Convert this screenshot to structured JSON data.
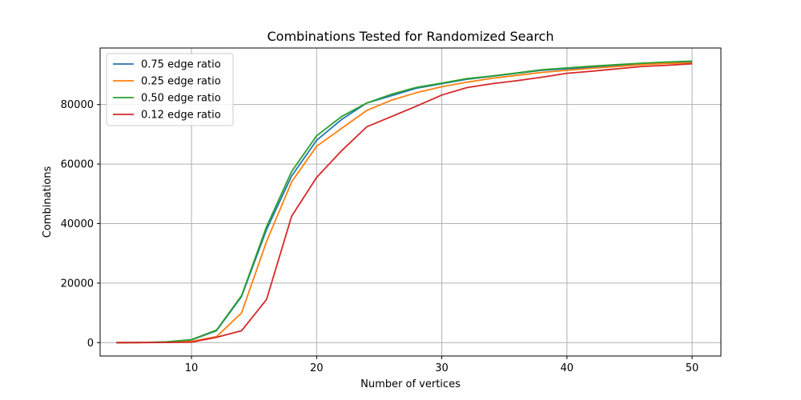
{
  "chart_data": {
    "type": "line",
    "title": "Combinations Tested for Randomized Search",
    "xlabel": "Number of vertices",
    "ylabel": "Combinations",
    "xlim": [
      2.7,
      52.3
    ],
    "ylim": [
      -4500,
      99000
    ],
    "xticks": [
      10,
      20,
      30,
      40,
      50
    ],
    "yticks": [
      0,
      20000,
      40000,
      60000,
      80000
    ],
    "grid": true,
    "legend_position": "top-left",
    "x": [
      4,
      6,
      8,
      10,
      12,
      14,
      16,
      18,
      20,
      22,
      24,
      26,
      28,
      30,
      32,
      34,
      36,
      38,
      40,
      42,
      44,
      46,
      48,
      50
    ],
    "series": [
      {
        "name": "0.75 edge ratio",
        "color": "#1f77b4",
        "values": [
          0,
          30,
          200,
          900,
          4000,
          15500,
          38000,
          56000,
          68000,
          75000,
          80500,
          83000,
          85500,
          87000,
          88500,
          89500,
          90500,
          91500,
          92000,
          92500,
          93000,
          93500,
          94000,
          94300
        ]
      },
      {
        "name": "0.25 edge ratio",
        "color": "#ff7f0e",
        "values": [
          0,
          20,
          100,
          400,
          2000,
          10000,
          34000,
          54000,
          66000,
          72000,
          78000,
          81500,
          84000,
          86000,
          87500,
          88800,
          89800,
          90800,
          91500,
          92200,
          92800,
          93400,
          93800,
          94000
        ]
      },
      {
        "name": "0.50 edge ratio",
        "color": "#2ca02c",
        "values": [
          0,
          30,
          250,
          1000,
          4200,
          15800,
          39000,
          57500,
          69500,
          76000,
          80500,
          83500,
          85800,
          87200,
          88700,
          89600,
          90600,
          91700,
          92300,
          92900,
          93400,
          93900,
          94300,
          94600
        ]
      },
      {
        "name": "0.12 edge ratio",
        "color": "#d62728",
        "values": [
          0,
          10,
          50,
          150,
          1800,
          4000,
          14500,
          42500,
          55500,
          64500,
          72500,
          76000,
          79500,
          83200,
          85700,
          87000,
          88000,
          89200,
          90500,
          91200,
          92000,
          92800,
          93200,
          93700
        ]
      }
    ]
  }
}
